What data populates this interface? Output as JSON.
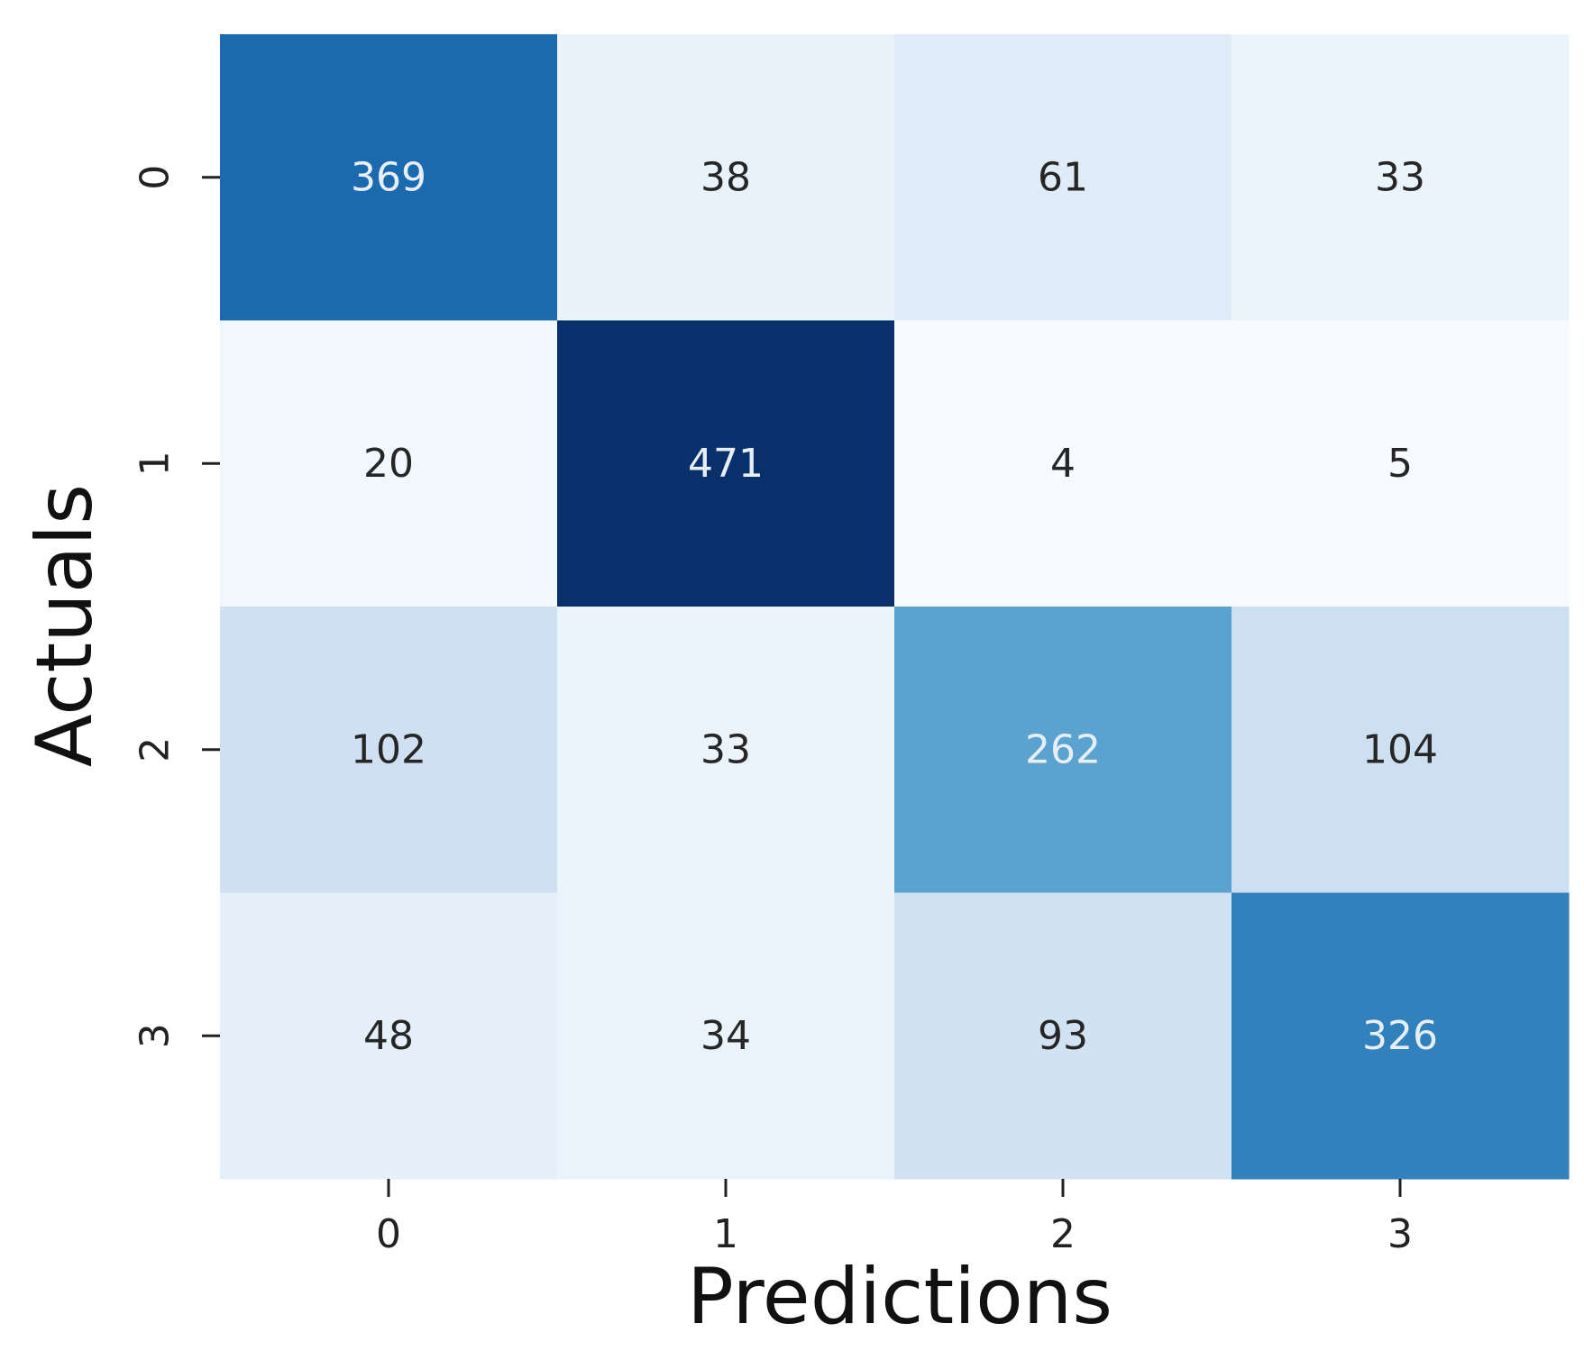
{
  "chart_data": {
    "type": "heatmap",
    "title": "",
    "xlabel": "Predictions",
    "ylabel": "Actuals",
    "x_categories": [
      "0",
      "1",
      "2",
      "3"
    ],
    "y_categories": [
      "0",
      "1",
      "2",
      "3"
    ],
    "matrix": [
      [
        369,
        38,
        61,
        33
      ],
      [
        20,
        471,
        4,
        5
      ],
      [
        102,
        33,
        262,
        104
      ],
      [
        48,
        34,
        93,
        326
      ]
    ],
    "colormap": "Blues",
    "colorbar": false,
    "light_text_color": "#e8eef6",
    "dark_text_color": "#262626"
  }
}
